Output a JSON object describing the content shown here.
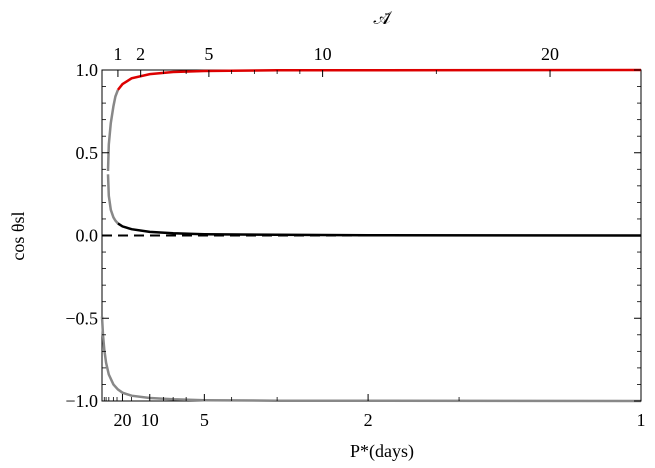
{
  "chart_data": {
    "type": "line",
    "title": "",
    "xlabel_bottom": "P*(days)",
    "xlabel_top": "𝒜̄",
    "ylabel": "cos θsl",
    "ylim": [
      -1.0,
      1.0
    ],
    "x_bottom": {
      "axis": "P* (days)",
      "scale": "reciprocal",
      "range": [
        80,
        1
      ],
      "ticks": [
        {
          "value": 20,
          "label": "20"
        },
        {
          "value": 10,
          "label": "10"
        },
        {
          "value": 5,
          "label": "5"
        },
        {
          "value": 2,
          "label": "2"
        },
        {
          "value": 1,
          "label": "1"
        }
      ]
    },
    "x_top": {
      "axis": "A-bar",
      "scale": "log",
      "ticks": [
        {
          "value": 1,
          "label": "1"
        },
        {
          "value": 2,
          "label": "2"
        },
        {
          "value": 5,
          "label": "5"
        },
        {
          "value": 10,
          "label": "10"
        },
        {
          "value": 20,
          "label": "20"
        }
      ]
    },
    "y_ticks": [
      {
        "value": 1.0,
        "label": "1.0"
      },
      {
        "value": 0.5,
        "label": "0.5"
      },
      {
        "value": 0.0,
        "label": "0.0"
      },
      {
        "value": -0.5,
        "label": "−0.5"
      },
      {
        "value": -1.0,
        "label": "−1.0"
      }
    ],
    "series": [
      {
        "color": "#888888",
        "style": "solid",
        "points": [
          [
            42.5,
            0.39
          ],
          [
            40,
            0.55
          ],
          [
            35,
            0.68
          ],
          [
            30,
            0.78
          ],
          [
            27,
            0.84
          ],
          [
            24,
            0.88
          ]
        ]
      },
      {
        "color": "#dd0000",
        "style": "solid",
        "points": [
          [
            24,
            0.88
          ],
          [
            20,
            0.915
          ],
          [
            15,
            0.95
          ],
          [
            10,
            0.975
          ],
          [
            7,
            0.988
          ],
          [
            5,
            0.994
          ],
          [
            3,
            0.998
          ],
          [
            2,
            0.999
          ],
          [
            1,
            1.0
          ]
        ]
      },
      {
        "color": "#888888",
        "style": "solid",
        "points": [
          [
            42.5,
            0.37
          ],
          [
            40,
            0.24
          ],
          [
            35,
            0.155
          ],
          [
            30,
            0.11
          ],
          [
            27,
            0.09
          ],
          [
            24,
            0.073
          ]
        ]
      },
      {
        "color": "#000000",
        "style": "solid",
        "points": [
          [
            24,
            0.073
          ],
          [
            20,
            0.055
          ],
          [
            15,
            0.038
          ],
          [
            10,
            0.022
          ],
          [
            7,
            0.013
          ],
          [
            5,
            0.008
          ],
          [
            3,
            0.004
          ],
          [
            2,
            0.002
          ],
          [
            1,
            0.0
          ]
        ]
      },
      {
        "color": "#000000",
        "style": "dashed",
        "points": [
          [
            80,
            0.0
          ],
          [
            1,
            0.0
          ]
        ]
      },
      {
        "color": "#888888",
        "style": "solid",
        "points": [
          [
            80,
            -0.49
          ],
          [
            70,
            -0.6
          ],
          [
            60,
            -0.69
          ],
          [
            50,
            -0.77
          ],
          [
            40,
            -0.84
          ],
          [
            30,
            -0.9
          ],
          [
            24,
            -0.93
          ],
          [
            20,
            -0.95
          ],
          [
            15,
            -0.968
          ],
          [
            10,
            -0.982
          ],
          [
            7,
            -0.99
          ],
          [
            5,
            -0.995
          ],
          [
            3,
            -0.998
          ],
          [
            2,
            -0.999
          ],
          [
            1,
            -1.0
          ]
        ]
      }
    ]
  }
}
